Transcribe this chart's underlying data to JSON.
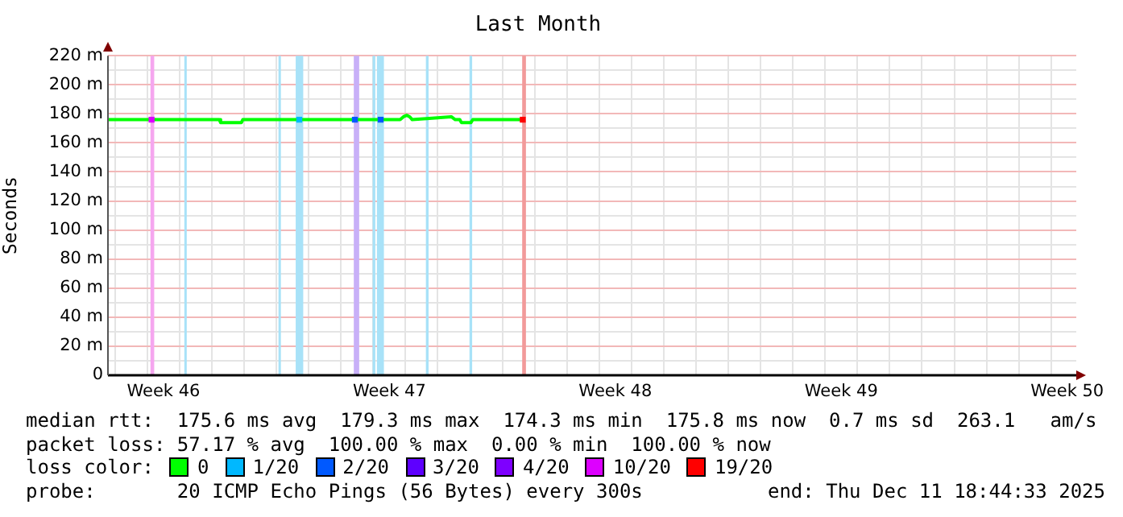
{
  "chart_data": {
    "type": "line",
    "title": "Last Month",
    "ylabel": "Seconds",
    "legend_title": "loss color:",
    "xlim": [
      "2025-11-11T18:44",
      "2025-12-11T18:44"
    ],
    "xticks": [
      {
        "value": "2025-11-12T00:00",
        "label": null
      },
      {
        "value": "2025-11-13T00:00",
        "label": null
      },
      {
        "value": "2025-11-13T12:00",
        "label": "Week 46"
      },
      {
        "value": "2025-11-14T00:00",
        "label": null
      },
      {
        "value": "2025-11-15T00:00",
        "label": null
      },
      {
        "value": "2025-11-16T00:00",
        "label": null
      },
      {
        "value": "2025-11-17T00:00",
        "label": null
      },
      {
        "value": "2025-11-18T00:00",
        "label": null
      },
      {
        "value": "2025-11-19T00:00",
        "label": null
      },
      {
        "value": "2025-11-20T00:00",
        "label": null
      },
      {
        "value": "2025-11-20T12:00",
        "label": "Week 47"
      },
      {
        "value": "2025-11-21T00:00",
        "label": null
      },
      {
        "value": "2025-11-22T00:00",
        "label": null
      },
      {
        "value": "2025-11-23T00:00",
        "label": null
      },
      {
        "value": "2025-11-24T00:00",
        "label": null
      },
      {
        "value": "2025-11-25T00:00",
        "label": null
      },
      {
        "value": "2025-11-26T00:00",
        "label": null
      },
      {
        "value": "2025-11-27T00:00",
        "label": null
      },
      {
        "value": "2025-11-27T12:00",
        "label": "Week 48"
      },
      {
        "value": "2025-11-28T00:00",
        "label": null
      },
      {
        "value": "2025-11-29T00:00",
        "label": null
      },
      {
        "value": "2025-11-30T00:00",
        "label": null
      },
      {
        "value": "2025-12-01T00:00",
        "label": null
      },
      {
        "value": "2025-12-02T00:00",
        "label": null
      },
      {
        "value": "2025-12-03T00:00",
        "label": null
      },
      {
        "value": "2025-12-04T00:00",
        "label": null
      },
      {
        "value": "2025-12-04T12:00",
        "label": "Week 49"
      },
      {
        "value": "2025-12-05T00:00",
        "label": null
      },
      {
        "value": "2025-12-06T00:00",
        "label": null
      },
      {
        "value": "2025-12-07T00:00",
        "label": null
      },
      {
        "value": "2025-12-08T00:00",
        "label": null
      },
      {
        "value": "2025-12-09T00:00",
        "label": null
      },
      {
        "value": "2025-12-10T00:00",
        "label": null
      },
      {
        "value": "2025-12-11T00:00",
        "label": null
      },
      {
        "value": "2025-12-11T12:00",
        "label": "Week 50"
      }
    ],
    "ylim": [
      0,
      220
    ],
    "yticks": [
      0,
      {
        "value": 10,
        "label": null
      },
      {
        "value": 20,
        "label": "20 m"
      },
      {
        "value": 30,
        "label": null
      },
      {
        "value": 40,
        "label": "40 m"
      },
      {
        "value": 50,
        "label": null
      },
      {
        "value": 60,
        "label": "60 m"
      },
      {
        "value": 70,
        "label": null
      },
      {
        "value": 80,
        "label": "80 m"
      },
      {
        "value": 90,
        "label": null
      },
      {
        "value": 100,
        "label": "100 m"
      },
      {
        "value": 110,
        "label": null
      },
      {
        "value": 120,
        "label": "120 m"
      },
      {
        "value": 130,
        "label": null
      },
      {
        "value": 140,
        "label": "140 m"
      },
      {
        "value": 150,
        "label": null
      },
      {
        "value": 160,
        "label": "160 m"
      },
      {
        "value": 170,
        "label": null
      },
      {
        "value": 180,
        "label": "180 m"
      },
      {
        "value": 190,
        "label": null
      },
      {
        "value": 200,
        "label": "200 m"
      },
      {
        "value": 210,
        "label": null
      },
      {
        "value": 220,
        "label": "220 m"
      }
    ],
    "grid": true,
    "legend": "bottom",
    "series": [
      {
        "name": "0",
        "color": "#00ff00",
        "x": [
          "2025-11-11T18:44",
          "2025-11-15T05:30",
          "2025-11-15T06:30",
          "2025-11-15T22:00",
          "2025-11-15T23:00",
          "2025-11-20T20:00",
          "2025-11-20T22:30",
          "2025-11-21T01:00",
          "2025-11-21T03:00",
          "2025-11-21T05:00",
          "2025-11-21T20:00",
          "2025-11-22T10:00",
          "2025-11-22T13:00",
          "2025-11-22T16:20",
          "2025-11-22T17:30",
          "2025-11-23T00:40",
          "2025-11-23T02:00",
          "2025-11-24T16:20"
        ],
        "values": [
          176,
          176,
          174,
          174,
          176,
          176,
          178,
          179,
          178,
          176,
          177,
          178,
          176,
          176,
          174,
          174,
          176,
          176
        ]
      },
      {
        "name": "1/20",
        "color": "#00b8ff",
        "type": "scatter",
        "marker": "square",
        "x": [
          "2025-11-17T17:00"
        ],
        "values": [
          176
        ]
      },
      {
        "name": "2/20",
        "color": "#0059ff",
        "type": "scatter",
        "marker": "square",
        "x": [
          "2025-11-19T10:20",
          "2025-11-20T05:30"
        ],
        "values": [
          176,
          176
        ]
      },
      {
        "name": "3/20",
        "color": "#5e00ff",
        "type": "scatter",
        "marker": "square"
      },
      {
        "name": "4/20",
        "color": "#7e00ff",
        "type": "scatter",
        "marker": "square"
      },
      {
        "name": "10/20",
        "color": "#dd00ff",
        "type": "scatter",
        "marker": "square",
        "x": [
          "2025-11-13T03:10"
        ],
        "values": [
          176
        ]
      },
      {
        "name": "19/20",
        "color": "#ff0000",
        "type": "scatter",
        "marker": "square",
        "x": [
          "2025-11-24T15:10"
        ],
        "values": [
          176
        ]
      }
    ],
    "bands": [
      {
        "axis": "x",
        "from": "2025-11-13T02:20",
        "to": "2025-11-13T05:08",
        "color": "#f5a6ef"
      },
      {
        "axis": "x",
        "from": "2025-11-14T03:32",
        "to": "2025-11-14T05:08",
        "color": "#a8e2f8"
      },
      {
        "axis": "x",
        "from": "2025-11-17T01:32",
        "to": "2025-11-17T02:44",
        "color": "#a8e2f8"
      },
      {
        "axis": "x",
        "from": "2025-11-17T14:20",
        "to": "2025-11-17T19:56",
        "color": "#a8e2f8"
      },
      {
        "axis": "x",
        "from": "2025-11-19T09:32",
        "to": "2025-11-19T13:32",
        "color": "#c8b0f8"
      },
      {
        "axis": "x",
        "from": "2025-11-19T23:32",
        "to": "2025-11-20T01:32",
        "color": "#a8e2f8"
      },
      {
        "axis": "x",
        "from": "2025-11-20T02:44",
        "to": "2025-11-20T07:56",
        "color": "#a8e2f8"
      },
      {
        "axis": "x",
        "from": "2025-11-21T15:08",
        "to": "2025-11-21T17:08",
        "color": "#a8e2f8"
      },
      {
        "axis": "x",
        "from": "2025-11-22T23:32",
        "to": "2025-11-23T01:32",
        "color": "#a8e2f8"
      },
      {
        "axis": "x",
        "from": "2025-11-24T14:44",
        "to": "2025-11-24T17:32",
        "color": "#f29a9a"
      }
    ],
    "annotations": [
      "median rtt:  175.6 ms avg  179.3 ms max  174.3 ms min  175.8 ms now  0.7 ms sd  263.1   am/s",
      "packet loss: 57.17 % avg  100.00 % max  0.00 % min  100.00 % now",
      "probe:       20 ICMP Echo Pings (56 Bytes) every 300s",
      "end: Thu Dec 11 18:44:33 2025"
    ]
  }
}
